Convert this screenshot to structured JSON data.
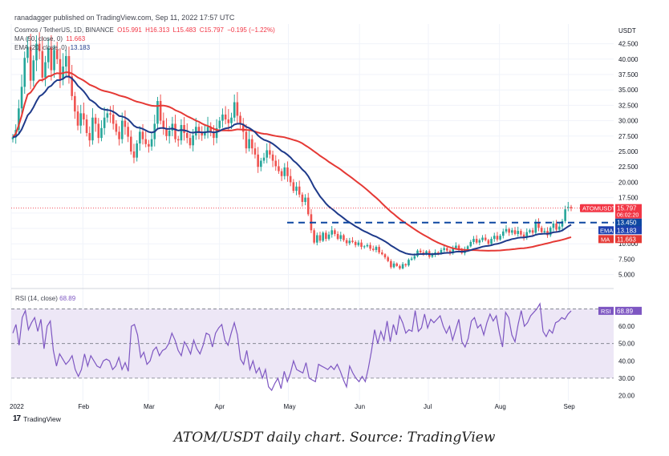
{
  "header": {
    "published": "ranadagger published on TradingView.com, Sep 11, 2022 17:57 UTC"
  },
  "legend": {
    "line1": {
      "symbol": "Cosmos / TetherUS, 1D, BINANCE",
      "o": "O15.991",
      "h": "H16.313",
      "l": "L15.483",
      "c": "C15.797",
      "chg": "−0.195 (−1.22%)"
    },
    "line2": {
      "label": "MA (50, close, 0)",
      "value": "11.663"
    },
    "line3": {
      "label": "EMA (20, close, 0)",
      "value": "13.183"
    }
  },
  "rsi_legend": {
    "label": "RSI (14, close)",
    "value": "68.89"
  },
  "brand": {
    "logo": "17",
    "name": "TradingView"
  },
  "caption": "ATOM/USDT daily chart. Source: TradingView",
  "colors": {
    "up": "#26a69a",
    "down": "#ef5350",
    "ema": "#1e3a8a",
    "ma": "#e53935",
    "rsi": "#7e57c2",
    "rsi_band": "#ede7f6",
    "level": "#0d47a1",
    "price_tag": "#f23645",
    "ema_tag": "#1e40af",
    "ma_tag": "#e53935"
  },
  "chart_data": {
    "type": "candlestick",
    "price_axis": {
      "unit_label": "USDT",
      "ticks": [
        "5.000",
        "7.500",
        "10.000",
        "12.500",
        "15.000",
        "17.500",
        "20.000",
        "22.500",
        "25.000",
        "27.500",
        "30.000",
        "32.500",
        "35.000",
        "37.500",
        "40.000",
        "42.500"
      ],
      "ylim": [
        3.0,
        45.7
      ]
    },
    "rsi_axis": {
      "ticks": [
        "20.00",
        "30.00",
        "40.00",
        "50.00",
        "60.00"
      ],
      "ylim": [
        17,
        79
      ],
      "band": [
        30,
        70
      ],
      "mid": 50
    },
    "x_axis": {
      "labels": [
        "2022",
        "Feb",
        "Mar",
        "Apr",
        "May",
        "Jun",
        "Jul",
        "Aug",
        "Sep"
      ]
    },
    "tags": {
      "symbol": {
        "label": "ATOMUSDT",
        "value": "15.797",
        "countdown": "06:02:20"
      },
      "level": {
        "value": "13.450"
      },
      "ema": {
        "label": "EMA",
        "value": "13.183"
      },
      "ma": {
        "label": "MA",
        "value": "11.663"
      },
      "rsi": {
        "label": "RSI",
        "value": "68.89"
      }
    },
    "horizontal_level": 13.45,
    "last_close": 15.797,
    "series_closes": [
      27.3,
      28.5,
      32.0,
      35.5,
      40.2,
      42.0,
      36.5,
      39.8,
      42.5,
      41.3,
      37.0,
      39.5,
      41.8,
      38.2,
      41.5,
      40.0,
      36.7,
      38.8,
      40.5,
      37.2,
      34.0,
      31.5,
      29.2,
      31.2,
      30.2,
      28.0,
      26.8,
      30.5,
      29.5,
      27.2,
      28.8,
      30.5,
      31.2,
      31.0,
      29.5,
      28.2,
      27.0,
      30.0,
      29.0,
      27.4,
      25.0,
      24.0,
      26.3,
      28.2,
      27.0,
      26.2,
      25.8,
      27.0,
      29.5,
      33.2,
      30.0,
      28.8,
      27.5,
      28.4,
      29.5,
      27.0,
      26.8,
      29.3,
      28.0,
      27.2,
      26.0,
      27.6,
      29.0,
      28.2,
      27.6,
      28.2,
      29.0,
      28.2,
      27.2,
      28.8,
      30.0,
      31.0,
      30.2,
      29.6,
      30.5,
      33.0,
      30.8,
      29.5,
      28.2,
      25.5,
      27.0,
      25.5,
      24.5,
      22.5,
      23.5,
      24.0,
      25.2,
      24.5,
      23.5,
      22.6,
      21.8,
      21.0,
      22.4,
      21.0,
      20.0,
      18.6,
      19.3,
      18.0,
      16.8,
      17.5,
      14.8,
      12.2,
      10.2,
      11.4,
      10.5,
      11.8,
      10.8,
      11.5,
      12.2,
      11.6,
      10.8,
      11.4,
      10.6,
      10.1,
      10.5,
      10.3,
      9.8,
      10.2,
      9.5,
      9.6,
      9.8,
      9.2,
      9.0,
      9.5,
      8.6,
      8.3,
      7.8,
      7.2,
      6.2,
      6.8,
      6.4,
      6.0,
      6.7,
      6.5,
      7.4,
      7.6,
      8.0,
      8.9,
      8.6,
      8.3,
      8.8,
      7.9,
      8.2,
      8.6,
      8.4,
      9.0,
      9.3,
      8.9,
      8.5,
      9.3,
      9.7,
      9.0,
      8.5,
      9.1,
      9.6,
      10.3,
      10.8,
      10.2,
      10.6,
      11.0,
      10.6,
      10.0,
      10.8,
      11.3,
      10.7,
      11.3,
      12.0,
      12.4,
      11.8,
      12.2,
      11.6,
      12.1,
      11.5,
      11.0,
      11.9,
      12.2,
      11.8,
      13.4,
      12.6,
      11.9,
      12.1,
      11.4,
      12.6,
      13.3,
      12.3,
      12.8,
      13.7,
      15.6,
      16.0,
      15.8
    ],
    "series_opens": [
      27.0,
      27.3,
      28.5,
      32.0,
      35.5,
      40.2,
      42.0,
      36.5,
      39.8,
      42.5,
      41.3,
      37.0,
      39.5,
      41.8,
      38.2,
      41.5,
      40.0,
      36.7,
      38.8,
      40.5,
      37.2,
      34.0,
      31.5,
      29.2,
      31.2,
      30.2,
      28.0,
      26.8,
      30.5,
      29.5,
      27.2,
      28.8,
      30.5,
      31.2,
      31.0,
      29.5,
      28.2,
      27.0,
      30.0,
      29.0,
      27.4,
      25.0,
      24.0,
      26.3,
      28.2,
      27.0,
      26.2,
      25.8,
      27.0,
      29.5,
      33.2,
      30.0,
      28.8,
      27.5,
      28.4,
      29.5,
      27.0,
      26.8,
      29.3,
      28.0,
      27.2,
      26.0,
      27.6,
      29.0,
      28.2,
      27.6,
      28.2,
      29.0,
      28.2,
      27.2,
      28.8,
      30.0,
      31.0,
      30.2,
      29.6,
      30.5,
      33.0,
      30.8,
      29.5,
      28.2,
      25.5,
      27.0,
      25.5,
      24.5,
      22.5,
      23.5,
      24.0,
      25.2,
      24.5,
      23.5,
      22.6,
      21.8,
      21.0,
      22.4,
      21.0,
      20.0,
      18.6,
      19.3,
      18.0,
      16.8,
      17.5,
      14.8,
      12.2,
      10.2,
      11.4,
      10.5,
      11.8,
      10.8,
      11.5,
      12.2,
      11.6,
      10.8,
      11.4,
      10.6,
      10.1,
      10.5,
      10.3,
      9.8,
      10.2,
      9.5,
      9.6,
      9.8,
      9.2,
      9.0,
      9.5,
      8.6,
      8.3,
      7.8,
      7.2,
      6.2,
      6.8,
      6.4,
      6.0,
      6.7,
      6.5,
      7.4,
      7.6,
      8.0,
      8.9,
      8.6,
      8.3,
      8.8,
      7.9,
      8.2,
      8.6,
      8.4,
      9.0,
      9.3,
      8.9,
      8.5,
      9.3,
      9.7,
      9.0,
      8.5,
      9.1,
      9.6,
      10.3,
      10.8,
      10.2,
      10.6,
      11.0,
      10.6,
      10.0,
      10.8,
      11.3,
      10.7,
      11.3,
      12.0,
      12.4,
      11.8,
      12.2,
      11.6,
      12.1,
      11.5,
      11.0,
      11.9,
      12.2,
      11.8,
      13.4,
      12.6,
      11.9,
      12.1,
      11.4,
      12.6,
      13.3,
      12.3,
      12.8,
      13.7,
      16.0,
      15.99
    ],
    "rsi_values": [
      56,
      61,
      49,
      65,
      69,
      58,
      62,
      65,
      57,
      64,
      47,
      60,
      63,
      46,
      37,
      44,
      41,
      38,
      40,
      43,
      35,
      31,
      35,
      44,
      37,
      43,
      40,
      37,
      36,
      40,
      41,
      40,
      35,
      37,
      42,
      35,
      39,
      34,
      60,
      61,
      55,
      42,
      45,
      38,
      40,
      46,
      48,
      43,
      46,
      47,
      50,
      56,
      52,
      46,
      43,
      51,
      48,
      44,
      52,
      47,
      44,
      49,
      56,
      55,
      48,
      56,
      59,
      61,
      52,
      49,
      56,
      62,
      55,
      41,
      38,
      46,
      35,
      40,
      33,
      36,
      30,
      35,
      25,
      23,
      27,
      30,
      24,
      34,
      28,
      33,
      40,
      35,
      34,
      33,
      39,
      30,
      29,
      28,
      38,
      37,
      36,
      35,
      37,
      35,
      38,
      34,
      29,
      25,
      37,
      33,
      30,
      28,
      31,
      28,
      36,
      46,
      58,
      50,
      57,
      52,
      63,
      51,
      61,
      55,
      66,
      62,
      56,
      58,
      57,
      69,
      57,
      59,
      67,
      59,
      64,
      62,
      64,
      66,
      60,
      56,
      60,
      52,
      58,
      64,
      51,
      48,
      53,
      63,
      65,
      59,
      61,
      55,
      62,
      67,
      63,
      66,
      56,
      48,
      68,
      65,
      55,
      51,
      61,
      69,
      60,
      62,
      66,
      68,
      70,
      73,
      57,
      54,
      58,
      56,
      62,
      63,
      65,
      64,
      67,
      68.89
    ]
  }
}
